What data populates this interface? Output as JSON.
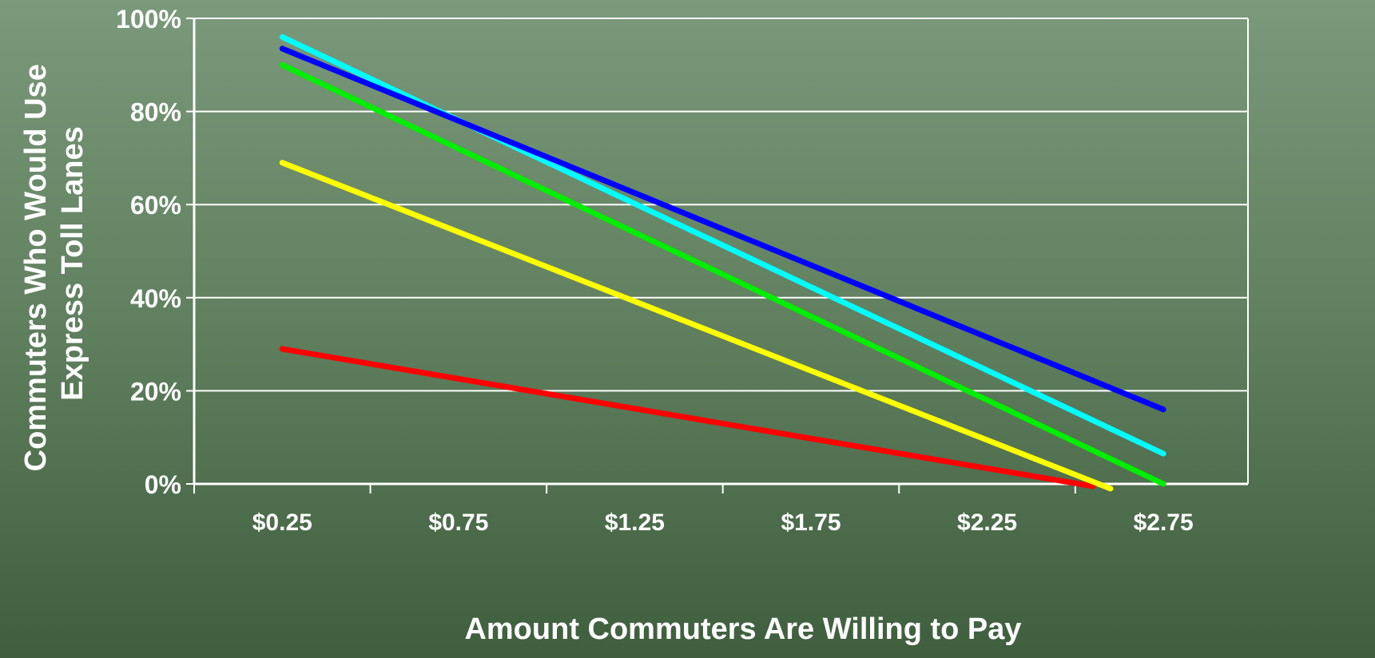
{
  "chart_data": {
    "type": "line",
    "title": "",
    "xlabel": "Amount Commuters Are Willing to Pay",
    "ylabel_lines": [
      "Commuters Who Would Use",
      "Express Toll Lanes"
    ],
    "ylim": [
      0,
      100
    ],
    "y_ticks": [
      0,
      20,
      40,
      60,
      80,
      100
    ],
    "y_tick_labels": [
      "0%",
      "20%",
      "40%",
      "60%",
      "80%",
      "100%"
    ],
    "x_domain": [
      0,
      2.99
    ],
    "x_ticks": [
      0.25,
      0.75,
      1.25,
      1.75,
      2.25,
      2.75
    ],
    "x_tick_labels": [
      "$0.25",
      "$0.75",
      "$1.25",
      "$1.75",
      "$2.25",
      "$2.75"
    ],
    "grid": true,
    "legend": "none",
    "series": [
      {
        "color": "#ff0000",
        "points": [
          [
            0.25,
            29
          ],
          [
            2.55,
            -0.5
          ]
        ]
      },
      {
        "color": "#ffff00",
        "points": [
          [
            0.25,
            69
          ],
          [
            2.6,
            -1
          ]
        ]
      },
      {
        "color": "#00ee00",
        "points": [
          [
            0.25,
            90
          ],
          [
            2.75,
            0
          ]
        ]
      },
      {
        "color": "#00ffff",
        "points": [
          [
            0.25,
            96
          ],
          [
            2.75,
            6.5
          ]
        ]
      },
      {
        "color": "#0000ff",
        "points": [
          [
            0.25,
            93.5
          ],
          [
            2.75,
            16
          ]
        ]
      }
    ]
  }
}
